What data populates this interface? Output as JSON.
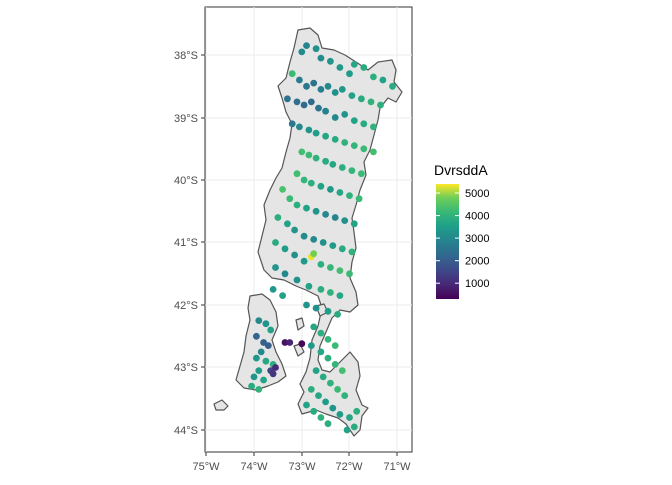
{
  "chart_data": {
    "type": "map-scatter",
    "title": "",
    "xlabel": "",
    "ylabel": "",
    "x_ticks": [
      "75°W",
      "74°W",
      "73°W",
      "72°W",
      "71°W"
    ],
    "y_ticks": [
      "38°S",
      "39°S",
      "40°S",
      "41°S",
      "42°S",
      "43°S",
      "44°S"
    ],
    "xlim": [
      -75.15,
      -70.7
    ],
    "ylim": [
      -44.2,
      -37.2
    ],
    "grid": true,
    "legend": {
      "title": "DvrsddA",
      "position": "right",
      "breaks": [
        "5000",
        "4000",
        "3000",
        "2000",
        "1000"
      ],
      "range": [
        300,
        5400
      ],
      "colormap": "viridis"
    },
    "points": [
      [
        -73.0,
        -37.95,
        3000
      ],
      [
        -72.9,
        -37.85,
        2900
      ],
      [
        -72.7,
        -37.9,
        3200
      ],
      [
        -72.6,
        -38.05,
        3100
      ],
      [
        -72.4,
        -38.1,
        3300
      ],
      [
        -72.2,
        -38.2,
        3400
      ],
      [
        -72.0,
        -38.3,
        3500
      ],
      [
        -71.9,
        -38.15,
        3700
      ],
      [
        -71.7,
        -38.2,
        3800
      ],
      [
        -71.5,
        -38.35,
        3900
      ],
      [
        -71.3,
        -38.4,
        3600
      ],
      [
        -71.1,
        -38.5,
        3800
      ],
      [
        -73.2,
        -38.3,
        4200
      ],
      [
        -73.05,
        -38.4,
        2700
      ],
      [
        -72.9,
        -38.5,
        2600
      ],
      [
        -72.75,
        -38.45,
        2500
      ],
      [
        -72.6,
        -38.55,
        2800
      ],
      [
        -72.45,
        -38.5,
        3000
      ],
      [
        -72.3,
        -38.6,
        3200
      ],
      [
        -72.15,
        -38.55,
        3400
      ],
      [
        -71.95,
        -38.65,
        3600
      ],
      [
        -71.75,
        -38.7,
        3800
      ],
      [
        -71.55,
        -38.75,
        4000
      ],
      [
        -71.35,
        -38.8,
        3900
      ],
      [
        -73.3,
        -38.7,
        2500
      ],
      [
        -73.1,
        -38.75,
        2400
      ],
      [
        -72.95,
        -38.8,
        2300
      ],
      [
        -72.8,
        -38.75,
        2300
      ],
      [
        -72.65,
        -38.85,
        2500
      ],
      [
        -72.5,
        -38.9,
        2800
      ],
      [
        -72.3,
        -39.0,
        3000
      ],
      [
        -72.1,
        -38.95,
        3300
      ],
      [
        -71.9,
        -39.05,
        3600
      ],
      [
        -71.7,
        -39.1,
        3800
      ],
      [
        -71.5,
        -39.15,
        4000
      ],
      [
        -73.2,
        -39.1,
        2600
      ],
      [
        -73.05,
        -39.15,
        3000
      ],
      [
        -72.85,
        -39.2,
        3300
      ],
      [
        -72.7,
        -39.25,
        3500
      ],
      [
        -72.5,
        -39.3,
        3700
      ],
      [
        -72.3,
        -39.35,
        3800
      ],
      [
        -72.1,
        -39.4,
        4000
      ],
      [
        -71.9,
        -39.45,
        4100
      ],
      [
        -71.7,
        -39.5,
        4200
      ],
      [
        -71.5,
        -39.55,
        4300
      ],
      [
        -73.0,
        -39.55,
        4300
      ],
      [
        -72.85,
        -39.6,
        4200
      ],
      [
        -72.7,
        -39.65,
        4000
      ],
      [
        -72.5,
        -39.7,
        3800
      ],
      [
        -72.35,
        -39.75,
        3700
      ],
      [
        -72.15,
        -39.8,
        3900
      ],
      [
        -71.95,
        -39.85,
        4100
      ],
      [
        -71.75,
        -39.9,
        4200
      ],
      [
        -73.1,
        -39.9,
        4300
      ],
      [
        -72.95,
        -40.0,
        4100
      ],
      [
        -72.8,
        -40.05,
        3900
      ],
      [
        -72.6,
        -40.1,
        3600
      ],
      [
        -72.4,
        -40.15,
        3400
      ],
      [
        -72.2,
        -40.2,
        3700
      ],
      [
        -72.0,
        -40.25,
        4000
      ],
      [
        -71.8,
        -40.3,
        4200
      ],
      [
        -73.4,
        -40.15,
        4400
      ],
      [
        -73.25,
        -40.3,
        4200
      ],
      [
        -73.1,
        -40.4,
        3900
      ],
      [
        -72.9,
        -40.45,
        3600
      ],
      [
        -72.7,
        -40.5,
        3300
      ],
      [
        -72.5,
        -40.55,
        3000
      ],
      [
        -72.3,
        -40.6,
        2900
      ],
      [
        -72.1,
        -40.65,
        3200
      ],
      [
        -71.9,
        -40.7,
        3600
      ],
      [
        -73.5,
        -40.6,
        3900
      ],
      [
        -73.3,
        -40.7,
        3600
      ],
      [
        -73.15,
        -40.8,
        3300
      ],
      [
        -72.95,
        -40.9,
        3100
      ],
      [
        -72.75,
        -40.95,
        3000
      ],
      [
        -72.55,
        -41.0,
        3200
      ],
      [
        -72.35,
        -41.05,
        3500
      ],
      [
        -72.15,
        -41.1,
        3800
      ],
      [
        -71.95,
        -41.15,
        4000
      ],
      [
        -73.55,
        -41.0,
        3800
      ],
      [
        -73.35,
        -41.1,
        3500
      ],
      [
        -73.15,
        -41.2,
        3200
      ],
      [
        -72.95,
        -41.3,
        3400
      ],
      [
        -72.6,
        -41.35,
        3900
      ],
      [
        -72.4,
        -41.4,
        4100
      ],
      [
        -72.2,
        -41.45,
        4300
      ],
      [
        -72.0,
        -41.5,
        4200
      ],
      [
        -73.55,
        -41.4,
        3300
      ],
      [
        -73.35,
        -41.5,
        3000
      ],
      [
        -73.1,
        -41.6,
        3200
      ],
      [
        -72.85,
        -41.7,
        3600
      ],
      [
        -72.6,
        -41.75,
        3900
      ],
      [
        -72.4,
        -41.8,
        4000
      ],
      [
        -72.2,
        -41.85,
        3700
      ],
      [
        -73.6,
        -41.75,
        3400
      ],
      [
        -73.4,
        -41.85,
        3600
      ],
      [
        -72.9,
        -42.0,
        3300
      ],
      [
        -72.7,
        -42.05,
        3200
      ],
      [
        -72.45,
        -42.1,
        3500
      ],
      [
        -72.25,
        -42.15,
        3800
      ],
      [
        -72.8,
        -41.23,
        5300
      ],
      [
        -72.75,
        -41.18,
        4800
      ],
      [
        -73.9,
        -42.25,
        3000
      ],
      [
        -73.75,
        -42.3,
        3300
      ],
      [
        -73.65,
        -42.4,
        3600
      ],
      [
        -73.95,
        -42.5,
        2200
      ],
      [
        -73.8,
        -42.6,
        2100
      ],
      [
        -73.7,
        -42.65,
        2000
      ],
      [
        -73.85,
        -42.75,
        3000
      ],
      [
        -73.95,
        -42.85,
        3400
      ],
      [
        -73.75,
        -42.9,
        3700
      ],
      [
        -73.6,
        -42.95,
        3900
      ],
      [
        -73.9,
        -43.05,
        3500
      ],
      [
        -74.0,
        -43.15,
        3300
      ],
      [
        -73.8,
        -43.2,
        3600
      ],
      [
        -73.65,
        -43.05,
        1500
      ],
      [
        -73.6,
        -43.1,
        1200
      ],
      [
        -73.55,
        -43.0,
        1000
      ],
      [
        -73.35,
        -42.6,
        600
      ],
      [
        -73.25,
        -42.6,
        900
      ],
      [
        -73.0,
        -42.62,
        400
      ],
      [
        -74.05,
        -43.3,
        3800
      ],
      [
        -73.9,
        -43.35,
        4000
      ],
      [
        -72.75,
        -42.35,
        3700
      ],
      [
        -72.6,
        -42.45,
        3900
      ],
      [
        -72.45,
        -42.55,
        4100
      ],
      [
        -72.3,
        -42.65,
        4200
      ],
      [
        -72.8,
        -42.65,
        3400
      ],
      [
        -72.6,
        -42.75,
        3700
      ],
      [
        -72.45,
        -42.85,
        3900
      ],
      [
        -72.3,
        -42.95,
        4100
      ],
      [
        -72.15,
        -43.05,
        4300
      ],
      [
        -72.7,
        -43.05,
        3600
      ],
      [
        -72.55,
        -43.15,
        3800
      ],
      [
        -72.4,
        -43.25,
        4000
      ],
      [
        -72.25,
        -43.35,
        4200
      ],
      [
        -72.1,
        -43.45,
        4000
      ],
      [
        -72.8,
        -43.35,
        3900
      ],
      [
        -72.65,
        -43.45,
        3700
      ],
      [
        -72.5,
        -43.55,
        3500
      ],
      [
        -72.35,
        -43.65,
        3300
      ],
      [
        -72.2,
        -43.75,
        3500
      ],
      [
        -72.9,
        -43.6,
        3600
      ],
      [
        -72.75,
        -43.7,
        3800
      ],
      [
        -72.6,
        -43.8,
        4000
      ],
      [
        -72.45,
        -43.9,
        3900
      ],
      [
        -72.0,
        -43.8,
        3700
      ],
      [
        -71.85,
        -43.7,
        3900
      ],
      [
        -72.05,
        -44.0,
        3600
      ],
      [
        -71.9,
        -43.95,
        3800
      ]
    ]
  }
}
